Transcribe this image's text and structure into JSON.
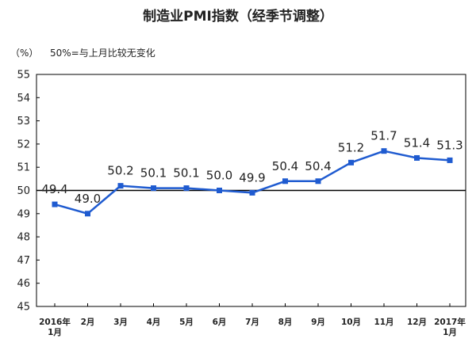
{
  "chart_data": {
    "type": "line",
    "title": "制造业PMI指数（经季节调整）",
    "ylabel": "（%）",
    "note": "50%=与上月比较无变化",
    "ylim": [
      45,
      55
    ],
    "yticks": [
      45,
      46,
      47,
      48,
      49,
      50,
      51,
      52,
      53,
      54,
      55
    ],
    "reference_line": 50,
    "grid": false,
    "categories": [
      "2016年\n1月",
      "2月",
      "3月",
      "4月",
      "5月",
      "6月",
      "7月",
      "8月",
      "9月",
      "10月",
      "11月",
      "12月",
      "2017年\n1月"
    ],
    "series": [
      {
        "values": [
          49.4,
          49.0,
          50.2,
          50.1,
          50.1,
          50.0,
          49.9,
          50.4,
          50.4,
          51.2,
          51.7,
          51.4,
          51.3
        ],
        "labels": [
          "49.4",
          "49.0",
          "50.2",
          "50.1",
          "50.1",
          "50.0",
          "49.9",
          "50.4",
          "50.4",
          "51.2",
          "51.7",
          "51.4",
          "51.3"
        ],
        "color": "#1f5bd0"
      }
    ]
  }
}
